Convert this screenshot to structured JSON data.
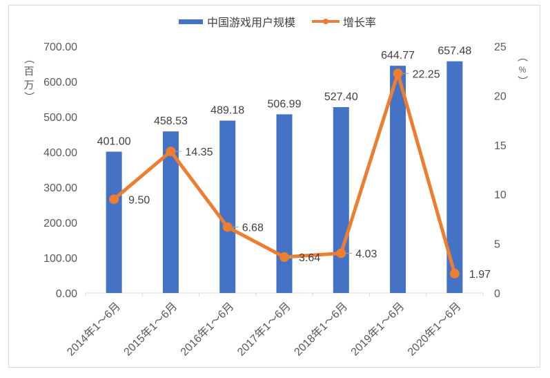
{
  "chart_data": {
    "type": "bar+line",
    "title": "",
    "categories": [
      "2014年1～6月",
      "2015年1～6月",
      "2016年1～6月",
      "2017年1～6月",
      "2018年1～6月",
      "2019年1～6月",
      "2020年1～6月"
    ],
    "series": [
      {
        "name": "中国游戏用户规模",
        "type": "bar",
        "axis": "left",
        "color": "#4472C4",
        "values": [
          401.0,
          458.53,
          489.18,
          506.99,
          527.4,
          644.77,
          657.48
        ],
        "labels": [
          "401.00",
          "458.53",
          "489.18",
          "506.99",
          "527.40",
          "644.77",
          "657.48"
        ]
      },
      {
        "name": "增长率",
        "type": "line",
        "axis": "right",
        "color": "#ED7D31",
        "values": [
          9.5,
          14.35,
          6.68,
          3.64,
          4.03,
          22.25,
          1.97
        ],
        "labels": [
          "9.50",
          "14.35",
          "6.68",
          "3.64",
          "4.03",
          "22.25",
          "1.97"
        ]
      }
    ],
    "ylabel": "（百万）",
    "y2label": "（%）",
    "xlabel": "",
    "ylim": [
      0,
      700
    ],
    "y2lim": [
      0,
      25
    ],
    "yticks": [
      "0.00",
      "100.00",
      "200.00",
      "300.00",
      "400.00",
      "500.00",
      "600.00",
      "700.00"
    ],
    "y2ticks": [
      "0",
      "5",
      "10",
      "15",
      "20",
      "25"
    ],
    "grid": false,
    "legend_position": "top"
  },
  "legend": {
    "bar_label": "中国游戏用户规模",
    "line_label": "增长率"
  },
  "axes": {
    "left_unit": [
      "（",
      "百",
      "万",
      "）"
    ],
    "right_unit": [
      "（",
      "%",
      "）"
    ]
  }
}
